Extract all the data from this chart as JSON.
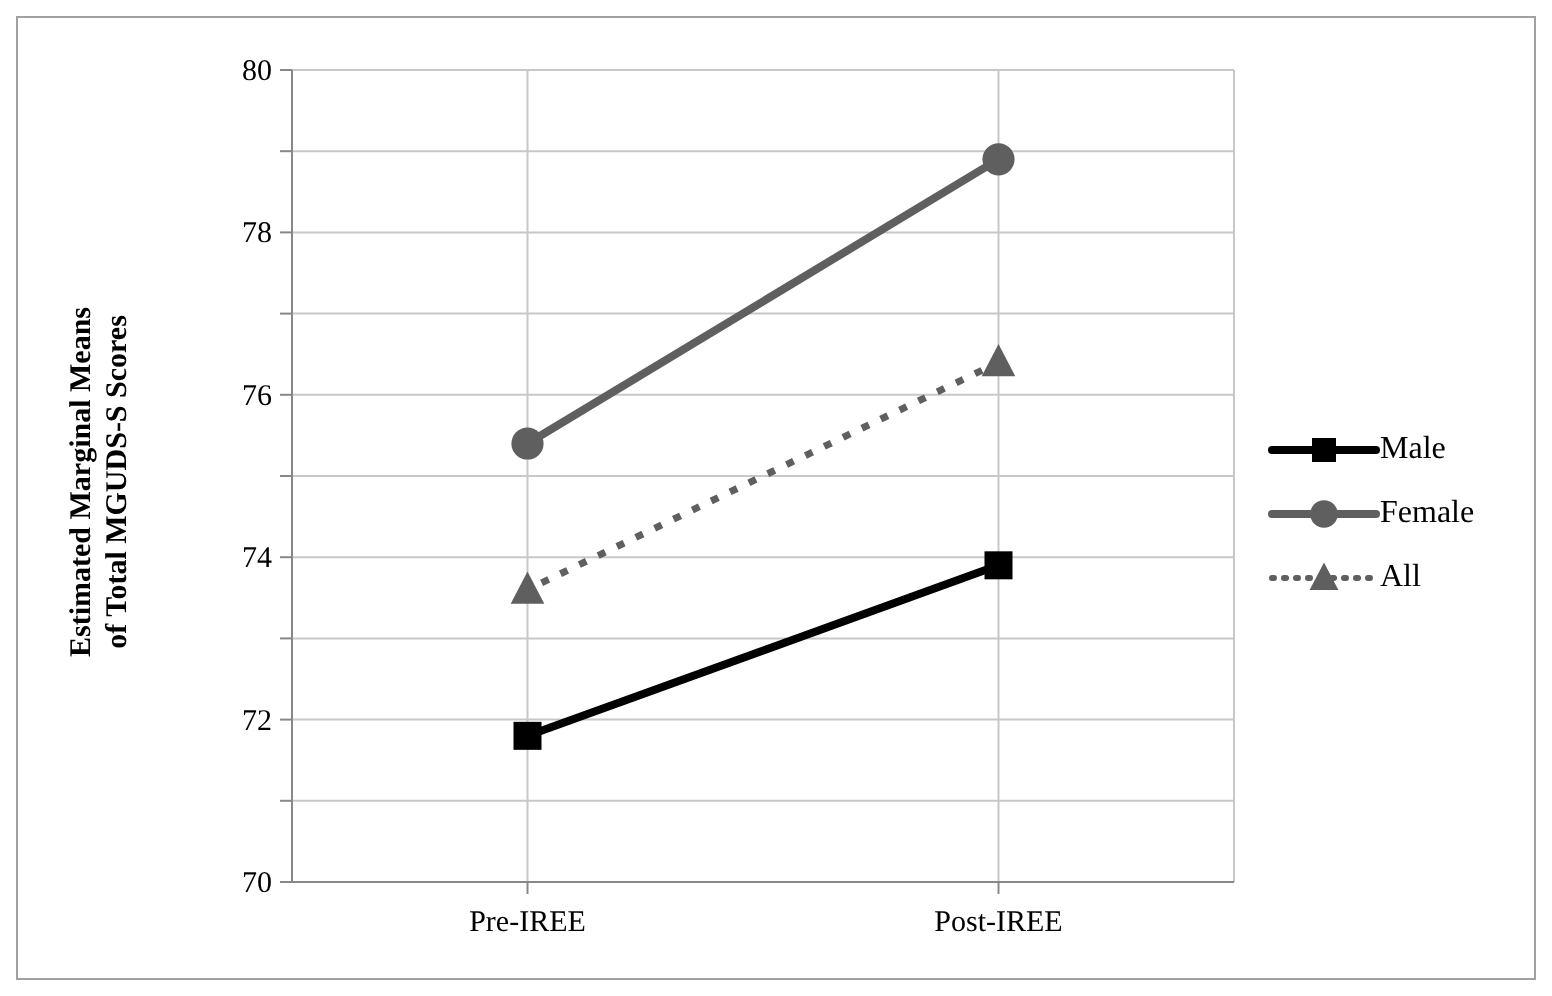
{
  "chart_data": {
    "type": "line",
    "ylabel": "Estimated Marginal Means of Total MGUDS-S Scores",
    "categories": [
      "Pre-IREE",
      "Post-IREE"
    ],
    "series": [
      {
        "name": "Male",
        "color": "#000000",
        "values": [
          71.8,
          73.9
        ],
        "marker": "square",
        "line_style": "solid"
      },
      {
        "name": "Female",
        "color": "#5f5f5f",
        "values": [
          75.4,
          78.9
        ],
        "marker": "circle",
        "line_style": "solid"
      },
      {
        "name": "All",
        "color": "#5f5f5f",
        "values": [
          73.6,
          76.4
        ],
        "marker": "triangle",
        "line_style": "dotted"
      }
    ],
    "ylim": [
      70,
      80
    ],
    "yticks": [
      70,
      {
        "value": 71,
        "label": null
      },
      72,
      {
        "value": 73,
        "label": null
      },
      74,
      {
        "value": 75,
        "label": null
      },
      76,
      {
        "value": 77,
        "label": null
      },
      78,
      {
        "value": 79,
        "label": null
      },
      80
    ],
    "grid": true,
    "legend": "right"
  }
}
